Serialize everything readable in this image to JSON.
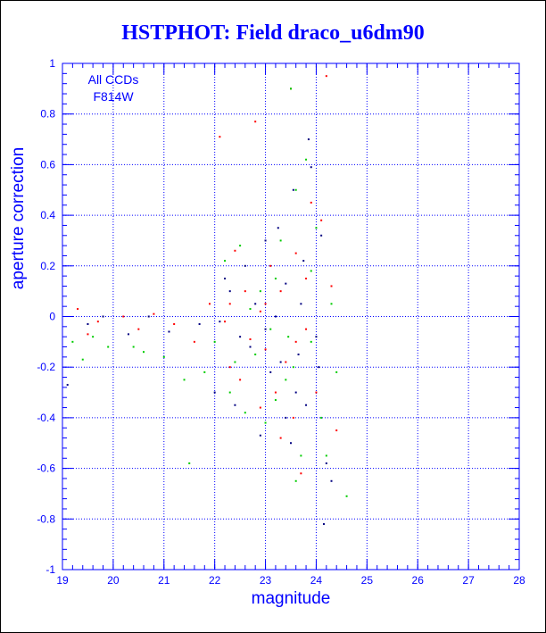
{
  "title": "HSTPHOT: Field draco_u6dm90",
  "chart_data": {
    "type": "scatter",
    "title": "HSTPHOT: Field draco_u6dm90",
    "xlabel": "magnitude",
    "ylabel": "aperture correction",
    "xlim": [
      19,
      28
    ],
    "ylim": [
      -1,
      1
    ],
    "grid": true,
    "x_ticks": [
      "19",
      "20",
      "21",
      "22",
      "23",
      "24",
      "25",
      "26",
      "27",
      "28"
    ],
    "y_ticks": [
      "1",
      "0.8",
      "0.6",
      "0.4",
      "0.2",
      "0",
      "-0.2",
      "-0.4",
      "-0.6",
      "-0.8",
      "-1"
    ],
    "annotations": [
      "All CCDs",
      "F814W"
    ],
    "colors": {
      "axis": "#0000ff",
      "grid": "#0000ff",
      "title": "#0000ff"
    },
    "series": [
      {
        "color": "#ff0000",
        "points": [
          [
            19.3,
            0.03
          ],
          [
            19.5,
            -0.07
          ],
          [
            19.7,
            -0.02
          ],
          [
            20.2,
            0.0
          ],
          [
            20.5,
            -0.05
          ],
          [
            20.8,
            0.01
          ],
          [
            21.2,
            -0.03
          ],
          [
            21.6,
            -0.1
          ],
          [
            21.9,
            0.05
          ],
          [
            22.1,
            0.71
          ],
          [
            22.2,
            -0.02
          ],
          [
            22.3,
            -0.2
          ],
          [
            22.4,
            0.26
          ],
          [
            22.6,
            0.1
          ],
          [
            22.7,
            -0.09
          ],
          [
            22.8,
            0.77
          ],
          [
            22.9,
            0.02
          ],
          [
            23.0,
            -0.13
          ],
          [
            23.1,
            0.2
          ],
          [
            23.2,
            -0.3
          ],
          [
            23.3,
            0.1
          ],
          [
            23.4,
            -0.18
          ],
          [
            23.5,
            0.9
          ],
          [
            23.55,
            -0.4
          ],
          [
            23.6,
            0.25
          ],
          [
            23.7,
            -0.62
          ],
          [
            23.8,
            -0.05
          ],
          [
            23.9,
            0.45
          ],
          [
            24.0,
            -0.3
          ],
          [
            24.2,
            0.95
          ],
          [
            24.3,
            0.12
          ],
          [
            24.4,
            -0.45
          ],
          [
            22.5,
            -0.25
          ],
          [
            23.0,
            0.05
          ],
          [
            23.3,
            -0.48
          ],
          [
            23.8,
            0.15
          ],
          [
            22.9,
            -0.36
          ],
          [
            23.6,
            -0.1
          ],
          [
            24.1,
            0.38
          ],
          [
            22.3,
            0.05
          ]
        ]
      },
      {
        "color": "#00cc00",
        "points": [
          [
            19.2,
            -0.1
          ],
          [
            19.4,
            -0.17
          ],
          [
            19.6,
            -0.08
          ],
          [
            19.9,
            -0.12
          ],
          [
            20.4,
            -0.12
          ],
          [
            20.6,
            -0.14
          ],
          [
            21.0,
            -0.16
          ],
          [
            21.4,
            -0.25
          ],
          [
            21.5,
            -0.58
          ],
          [
            21.8,
            -0.22
          ],
          [
            22.0,
            -0.1
          ],
          [
            22.2,
            0.22
          ],
          [
            22.3,
            -0.3
          ],
          [
            22.5,
            0.28
          ],
          [
            22.6,
            -0.38
          ],
          [
            22.8,
            -0.15
          ],
          [
            22.9,
            0.1
          ],
          [
            23.0,
            -0.42
          ],
          [
            23.1,
            -0.05
          ],
          [
            23.2,
            -0.33
          ],
          [
            23.3,
            0.3
          ],
          [
            23.4,
            -0.25
          ],
          [
            23.5,
            0.9
          ],
          [
            23.55,
            -0.2
          ],
          [
            23.6,
            0.5
          ],
          [
            23.7,
            -0.55
          ],
          [
            23.8,
            0.62
          ],
          [
            23.9,
            -0.1
          ],
          [
            24.0,
            0.35
          ],
          [
            24.1,
            -0.4
          ],
          [
            24.2,
            -0.55
          ],
          [
            24.4,
            -0.22
          ],
          [
            24.6,
            -0.71
          ],
          [
            22.7,
            0.03
          ],
          [
            23.2,
            0.15
          ],
          [
            23.6,
            -0.65
          ],
          [
            24.3,
            0.05
          ],
          [
            22.4,
            -0.18
          ],
          [
            23.9,
            0.18
          ],
          [
            23.45,
            -0.08
          ]
        ]
      },
      {
        "color": "#000080",
        "points": [
          [
            19.1,
            -0.27
          ],
          [
            19.5,
            -0.03
          ],
          [
            19.8,
            0.0
          ],
          [
            20.3,
            -0.07
          ],
          [
            20.7,
            0.0
          ],
          [
            21.1,
            -0.06
          ],
          [
            21.7,
            -0.03
          ],
          [
            22.0,
            -0.3
          ],
          [
            22.1,
            -0.02
          ],
          [
            22.3,
            0.1
          ],
          [
            22.4,
            -0.35
          ],
          [
            22.6,
            0.2
          ],
          [
            22.7,
            -0.12
          ],
          [
            22.9,
            -0.47
          ],
          [
            23.0,
            0.3
          ],
          [
            23.1,
            -0.22
          ],
          [
            23.2,
            0.0
          ],
          [
            23.3,
            -0.18
          ],
          [
            23.4,
            0.13
          ],
          [
            23.5,
            -0.5
          ],
          [
            23.55,
            0.5
          ],
          [
            23.6,
            -0.3
          ],
          [
            23.7,
            0.05
          ],
          [
            23.8,
            -0.35
          ],
          [
            23.9,
            0.59
          ],
          [
            24.0,
            -0.08
          ],
          [
            24.1,
            0.32
          ],
          [
            24.15,
            -0.82
          ],
          [
            24.2,
            -0.58
          ],
          [
            24.3,
            -0.65
          ],
          [
            22.2,
            0.15
          ],
          [
            22.8,
            0.05
          ],
          [
            23.4,
            -0.4
          ],
          [
            23.75,
            0.22
          ],
          [
            23.0,
            -0.05
          ],
          [
            23.65,
            -0.15
          ],
          [
            22.5,
            -0.08
          ],
          [
            23.25,
            0.35
          ],
          [
            24.05,
            -0.2
          ],
          [
            23.85,
            0.7
          ]
        ]
      }
    ]
  }
}
